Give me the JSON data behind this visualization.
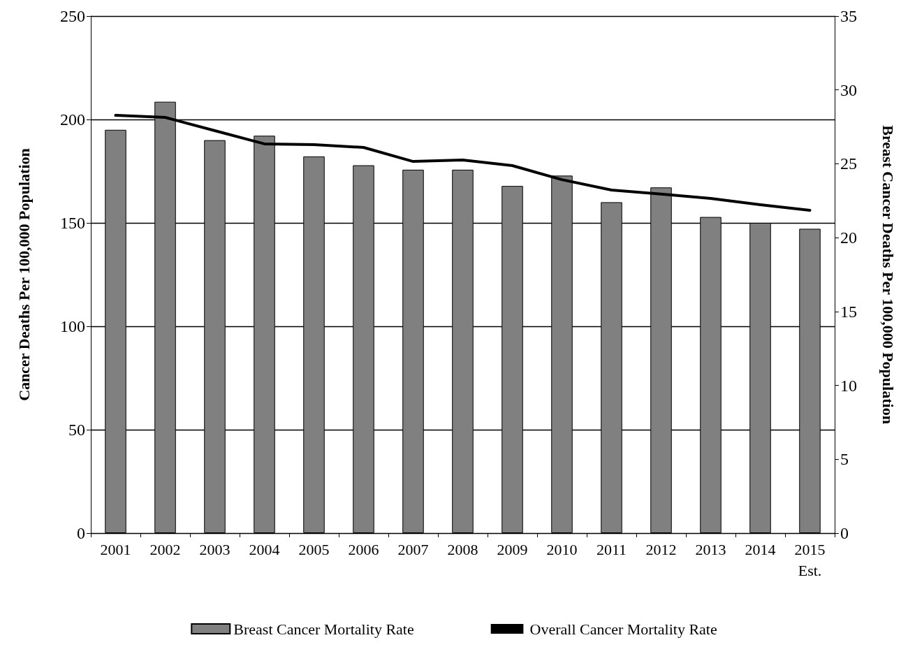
{
  "chart_data": {
    "type": "bar",
    "categories": [
      "2001",
      "2002",
      "2003",
      "2004",
      "2005",
      "2006",
      "2007",
      "2008",
      "2009",
      "2010",
      "2011",
      "2012",
      "2013",
      "2014",
      "2015\nEst."
    ],
    "series": [
      {
        "name": "Breast Cancer Mortality Rate",
        "axis": "y2",
        "color": "#808080",
        "values": [
          27.3,
          29.2,
          26.6,
          26.9,
          25.5,
          24.9,
          24.6,
          24.6,
          23.5,
          24.2,
          22.4,
          23.4,
          21.4,
          21.0,
          20.6
        ]
      },
      {
        "name": "Overall Cancer Mortality Rate",
        "type": "line",
        "axis": "y",
        "color": "#000000",
        "marker": "none",
        "values": [
          202.0,
          201.0,
          194.6,
          188.2,
          187.8,
          186.5,
          179.7,
          180.4,
          177.7,
          170.9,
          165.9,
          163.9,
          161.8,
          158.8,
          156.1
        ]
      }
    ],
    "ylabel": "Cancer Deaths Per 100,000 Population",
    "y2label": "Breast Cancer Deaths Per 100,000 Population",
    "ylim": [
      0,
      250
    ],
    "yticks": [
      0,
      50,
      100,
      150,
      200,
      250
    ],
    "y2lim": [
      0,
      35
    ],
    "y2ticks": [
      0,
      5,
      10,
      15,
      20,
      25,
      30,
      35
    ],
    "grid": "y",
    "legend": "bottom"
  }
}
